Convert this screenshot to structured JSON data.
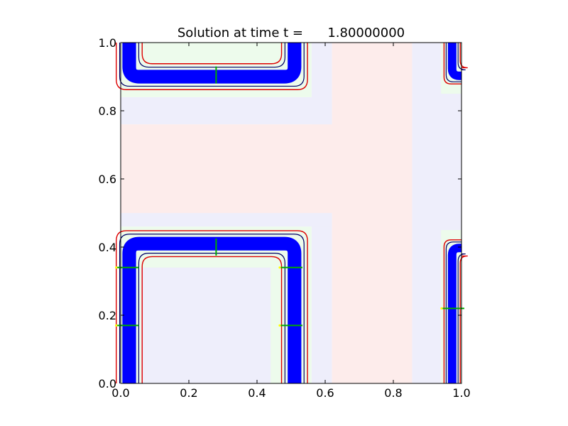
{
  "chart_data": {
    "type": "heatmap",
    "title": "Solution at time t =      1.80000000",
    "xlabel": "",
    "ylabel": "",
    "xlim": [
      0.0,
      1.0
    ],
    "ylim": [
      0.0,
      1.0
    ],
    "x_ticks": [
      "0.0",
      "0.2",
      "0.4",
      "0.6",
      "0.8",
      "1.0"
    ],
    "y_ticks": [
      "0.0",
      "0.2",
      "0.4",
      "0.6",
      "0.8",
      "1.0"
    ],
    "grid": false,
    "background_regions": [
      {
        "name": "pink-band-vertical",
        "color": "#fdeceb",
        "x": [
          0.62,
          0.855
        ],
        "y": [
          0.0,
          1.0
        ]
      },
      {
        "name": "pink-band-horizontal",
        "color": "#fdeceb",
        "x": [
          0.0,
          0.62
        ],
        "y": [
          0.5,
          0.76
        ]
      },
      {
        "name": "lavender-left-of-pink-vertical",
        "color": "#eeeefb",
        "x": [
          0.56,
          0.62
        ],
        "y": [
          0.0,
          1.0
        ]
      },
      {
        "name": "lavender-right-of-pink-vertical",
        "color": "#eeeefb",
        "x": [
          0.855,
          1.0
        ],
        "y": [
          0.0,
          1.0
        ]
      },
      {
        "name": "lavender-above-pink-horizontal",
        "color": "#eeeefb",
        "x": [
          0.0,
          0.62
        ],
        "y": [
          0.76,
          0.84
        ]
      },
      {
        "name": "lavender-below-pink-horizontal",
        "color": "#eeeefb",
        "x": [
          0.0,
          0.62
        ],
        "y": [
          0.46,
          0.5
        ]
      },
      {
        "name": "lavender-lower-left-box",
        "color": "#eeeefb",
        "x": [
          0.06,
          0.44
        ],
        "y": [
          0.0,
          0.34
        ]
      },
      {
        "name": "green-upper-left",
        "color": "#edfbec",
        "x": [
          0.0,
          0.56
        ],
        "y": [
          0.84,
          1.0
        ]
      },
      {
        "name": "green-lower-left",
        "color": "#edfbec",
        "x": [
          0.0,
          0.56
        ],
        "y": [
          0.0,
          0.46
        ]
      },
      {
        "name": "green-upper-right",
        "color": "#edfbec",
        "x": [
          0.94,
          1.0
        ],
        "y": [
          0.85,
          1.0
        ]
      },
      {
        "name": "green-lower-right",
        "color": "#edfbec",
        "x": [
          0.94,
          1.0
        ],
        "y": [
          0.0,
          0.45
        ]
      }
    ],
    "contours": [
      {
        "name": "upper-left-band",
        "shape": "u-open-top",
        "x": [
          0.0,
          0.53
        ],
        "y": [
          0.88,
          1.0
        ],
        "band": 0.04,
        "color": "#0000ff"
      },
      {
        "name": "lower-left-band",
        "shape": "u-inverted",
        "x": [
          0.0,
          0.53
        ],
        "y": [
          0.0,
          0.43
        ],
        "band": 0.04,
        "color": "#0000ff"
      },
      {
        "name": "upper-right-band",
        "shape": "corner-right",
        "x": [
          0.96,
          1.0
        ],
        "y": [
          0.89,
          1.0
        ],
        "band": 0.025,
        "color": "#0000ff"
      },
      {
        "name": "lower-right-band",
        "shape": "post-right",
        "x": [
          0.96,
          1.0
        ],
        "y": [
          0.0,
          0.41
        ],
        "band": 0.025,
        "color": "#0000ff"
      }
    ],
    "contour_colors": {
      "main": "#0000ff",
      "outer": "#dd0000",
      "dark": "#000066",
      "accent_green": "#00aa00",
      "accent_yellow": "#ffff00",
      "accent_magenta": "#ff00ff"
    }
  }
}
